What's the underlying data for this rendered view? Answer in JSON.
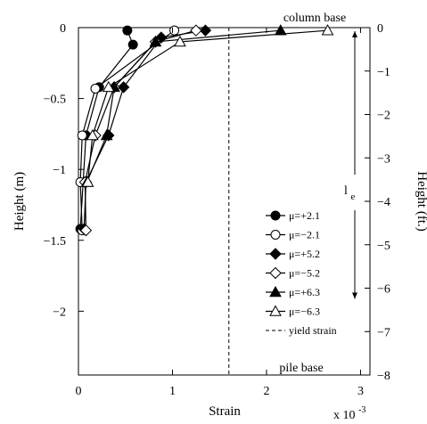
{
  "chart_data": {
    "type": "line",
    "xlabel": "Strain",
    "ylabel": "Height (m)",
    "y2label": "Height (ft.)",
    "x_multiplier": "x 10",
    "x_multiplier_exp": "-3",
    "xlim": [
      0,
      3.1
    ],
    "ylim": [
      -2.45,
      0
    ],
    "y2lim": [
      -8,
      0
    ],
    "x_ticks": [
      0,
      1,
      2,
      3
    ],
    "y_ticks": [
      0,
      -0.5,
      -1,
      -1.5,
      -2
    ],
    "y2_ticks": [
      0,
      -1,
      -2,
      -3,
      -4,
      -5,
      -6,
      -7,
      -8
    ],
    "x_tick_labels": [
      "0",
      "1",
      "2",
      "3"
    ],
    "y_tick_labels": [
      "0",
      "−0.5",
      "−1",
      "−1.5",
      "−2"
    ],
    "y2_tick_labels": [
      "0",
      "−1",
      "−2",
      "−3",
      "−4",
      "−5",
      "−6",
      "−7",
      "−8"
    ],
    "grid": false,
    "legend_position": "right-middle",
    "annotations": {
      "column_base": "column base",
      "pile_base": "pile base",
      "le_main": "l",
      "le_sub": "e",
      "le_arrow": {
        "y_start": 0,
        "y_end": -1.9
      }
    },
    "yield_strain": {
      "name": "yield strain",
      "x": 1.6
    },
    "series": [
      {
        "name": "μ=+2.1",
        "marker": "circle",
        "filled": true,
        "x": [
          0.52,
          0.58,
          0.22,
          0.08,
          0.02
        ],
        "y": [
          -0.02,
          -0.12,
          -0.42,
          -0.76,
          -1.42
        ]
      },
      {
        "name": "μ=−2.1",
        "marker": "circle",
        "filled": false,
        "x": [
          1.02,
          0.18,
          0.04,
          0.02,
          0.04
        ],
        "y": [
          -0.02,
          -0.43,
          -0.76,
          -1.09,
          -1.43
        ]
      },
      {
        "name": "μ=+5.2",
        "marker": "diamond",
        "filled": true,
        "x": [
          1.35,
          0.88,
          0.48,
          0.32,
          0.08,
          0.06
        ],
        "y": [
          -0.02,
          -0.07,
          -0.42,
          -0.76,
          -1.09,
          -1.42
        ]
      },
      {
        "name": "μ=−5.2",
        "marker": "diamond",
        "filled": false,
        "x": [
          1.25,
          0.82,
          0.38,
          0.18,
          0.07,
          0.08
        ],
        "y": [
          -0.02,
          -0.1,
          -0.42,
          -0.76,
          -1.09,
          -1.43
        ]
      },
      {
        "name": "μ=+6.3",
        "marker": "triangle",
        "filled": true,
        "x": [
          2.15,
          0.82,
          0.38,
          0.3,
          0.09
        ],
        "y": [
          -0.02,
          -0.1,
          -0.42,
          -0.76,
          -1.09
        ]
      },
      {
        "name": "μ=−6.3",
        "marker": "triangle",
        "filled": false,
        "x": [
          2.65,
          1.08,
          0.32,
          0.15,
          0.1
        ],
        "y": [
          -0.02,
          -0.1,
          -0.42,
          -0.76,
          -1.09
        ]
      }
    ]
  }
}
